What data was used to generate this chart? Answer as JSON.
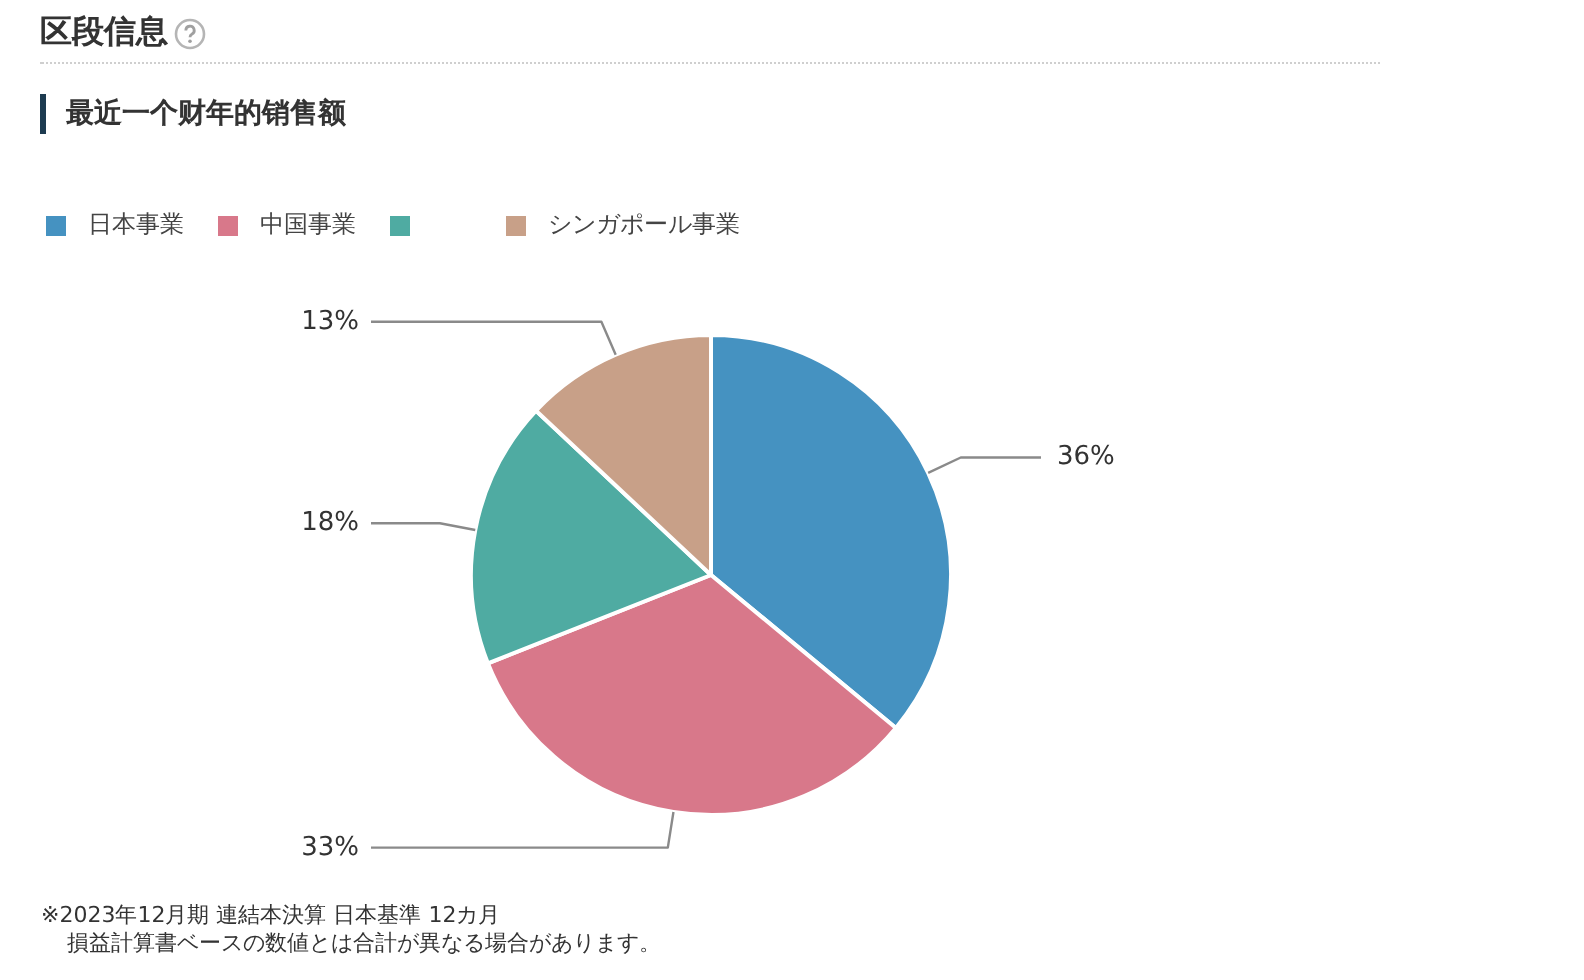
{
  "chart_data": {
    "type": "pie",
    "title": "区段信息",
    "subtitle": "最近一个财年的销售额",
    "categories": [
      "日本事業",
      "中国事業",
      null,
      "シンガポール事業"
    ],
    "values": [
      36,
      33,
      18,
      13
    ],
    "colors": [
      "#4592c1",
      "#d8788a",
      "#4faba2",
      "#c8a088"
    ],
    "value_labels": [
      "36%",
      "33%",
      "18%",
      "13%"
    ],
    "legend": "top left",
    "annotations": [
      "※2023年12月期 連結本決算 日本基準 12カ月",
      "損益計算書ベースの数値とは合計が異なる場合があります。"
    ]
  }
}
